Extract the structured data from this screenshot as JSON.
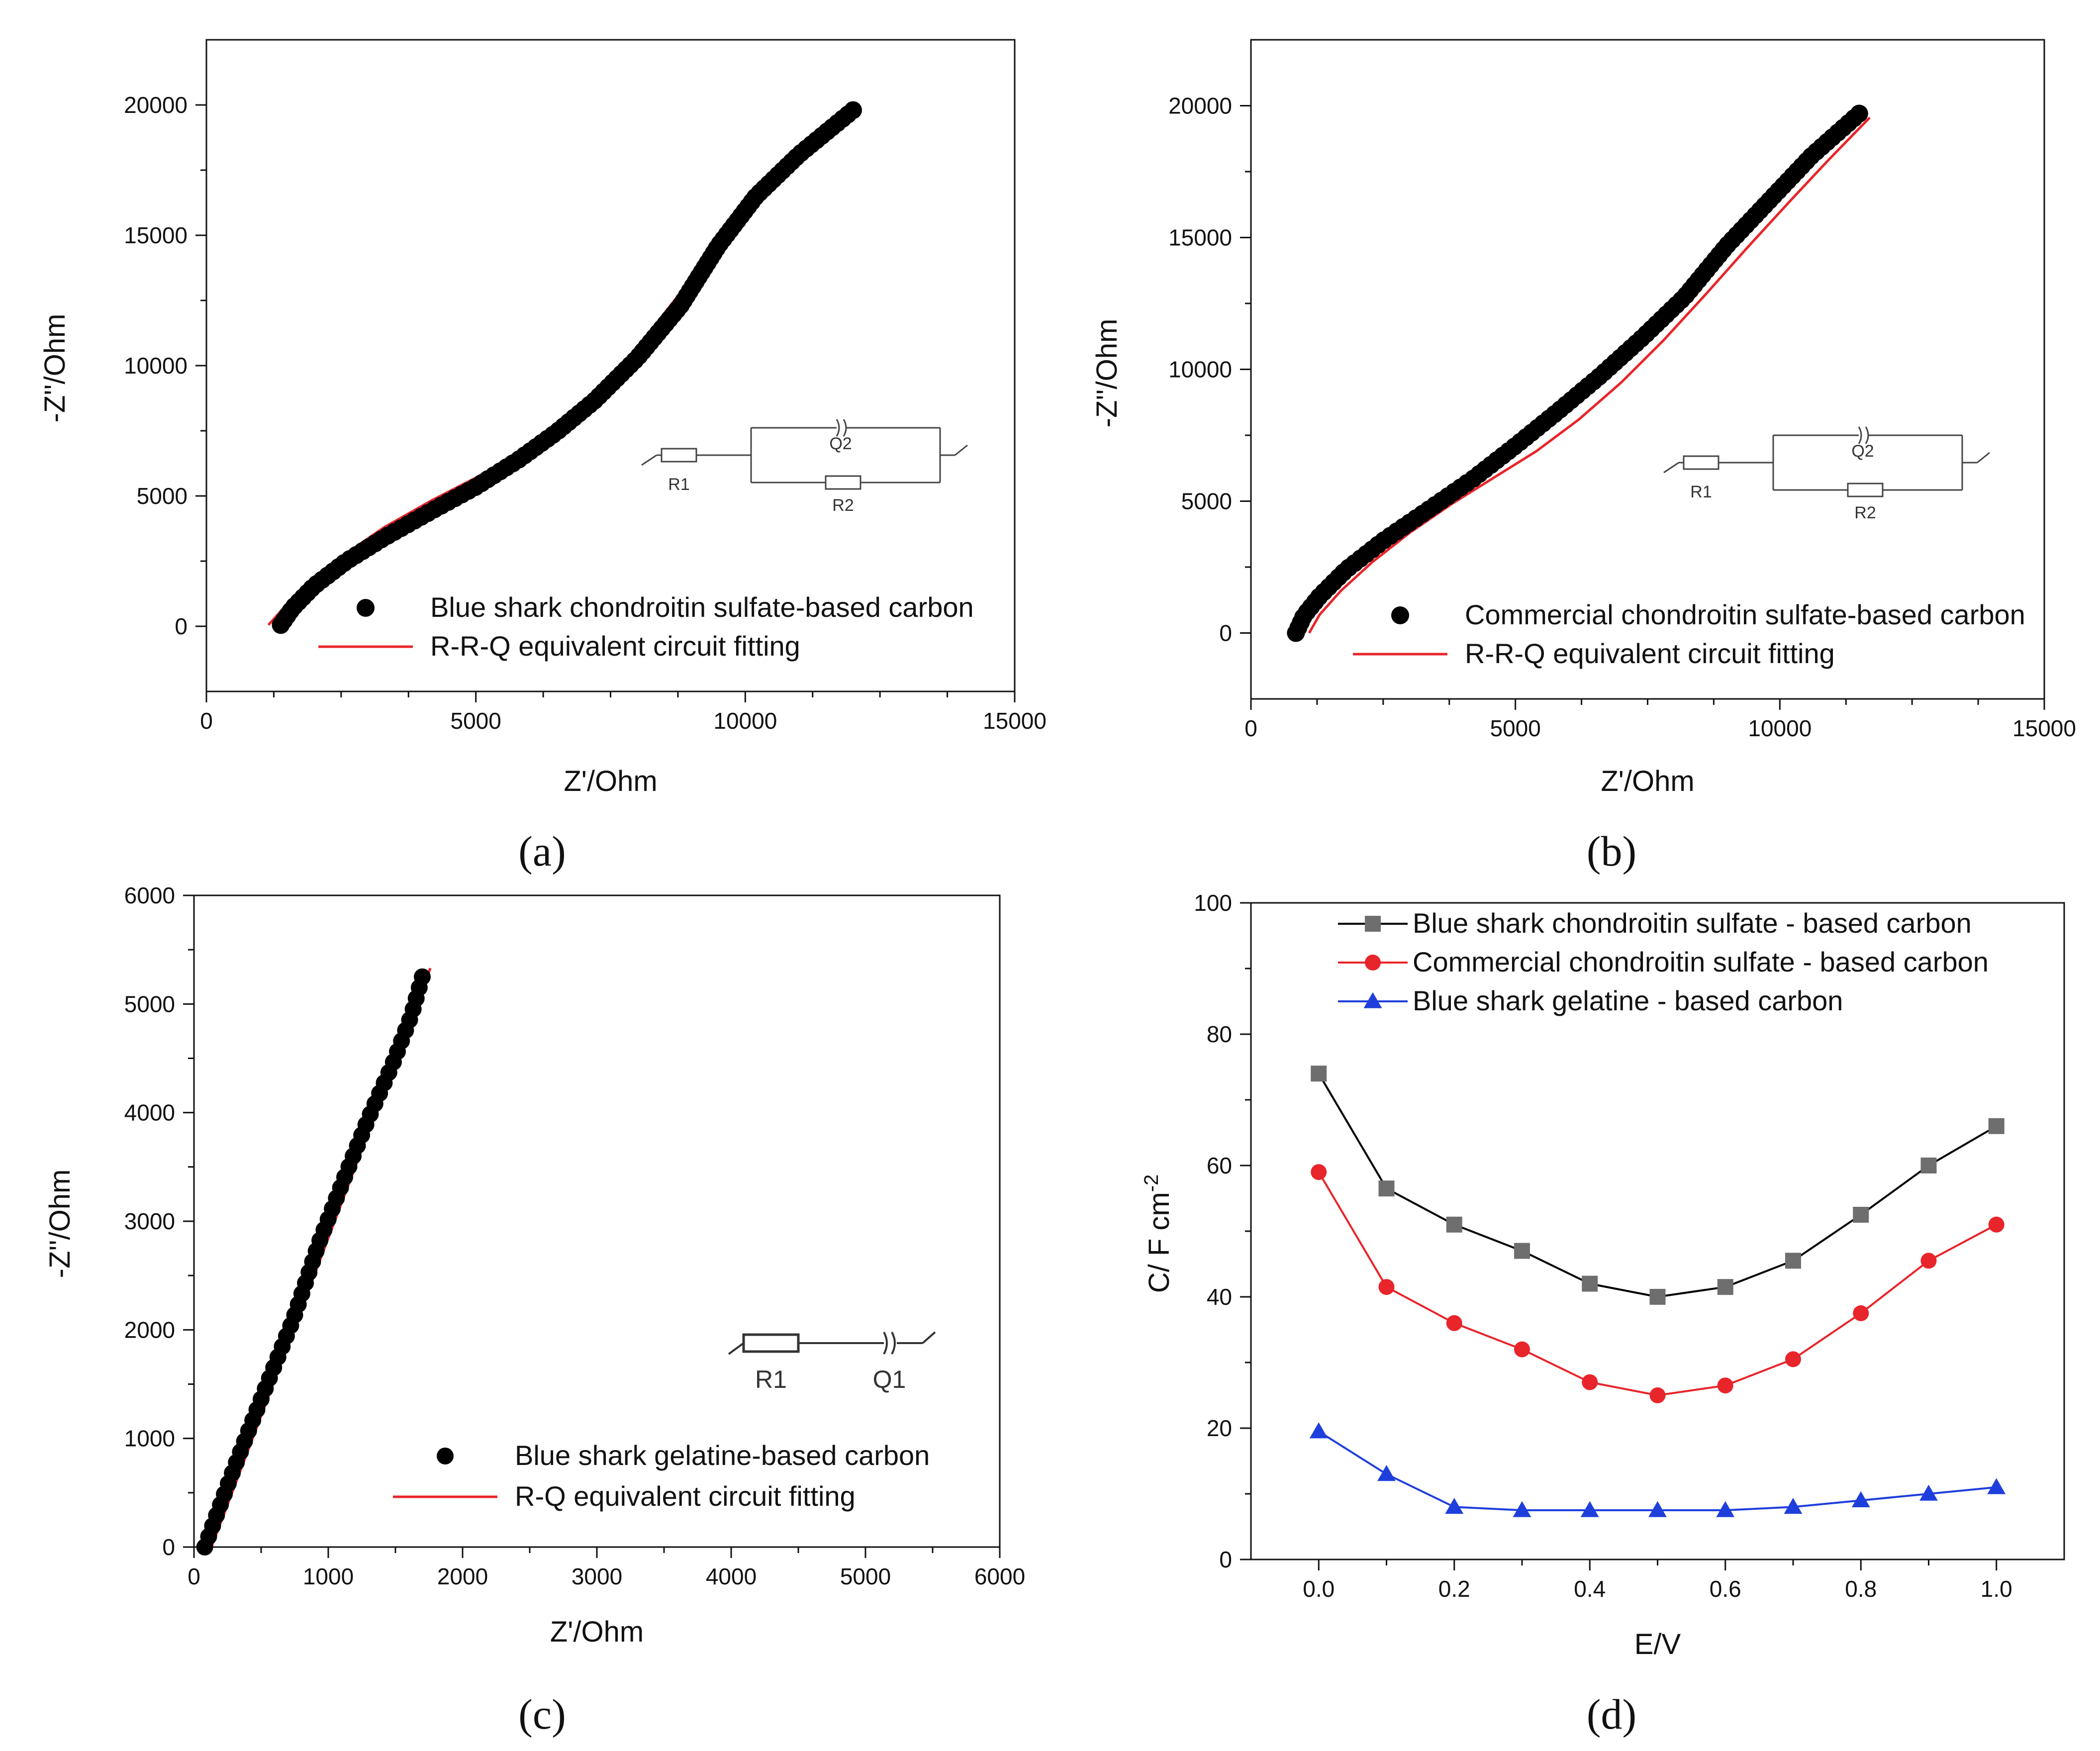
{
  "colors": {
    "black": "#000000",
    "red": "#e8252a",
    "gray": "#6e6e6e",
    "blue": "#1f3fdc",
    "wire": "#444444"
  },
  "chart_data": [
    {
      "id": "a",
      "type": "scatter",
      "panel_label": "(a)",
      "xlabel": "Z'/Ohm",
      "ylabel": "-Z''/Ohm",
      "xlim": [
        0,
        15000
      ],
      "ylim": [
        -2500,
        22500
      ],
      "xticks": [
        0,
        5000,
        10000,
        15000
      ],
      "yticks": [
        0,
        5000,
        10000,
        15000,
        20000
      ],
      "xtick_labels": [
        "0",
        "5000",
        "10000",
        "15000"
      ],
      "ytick_labels": [
        "0",
        "5000",
        "10000",
        "15000",
        "20000"
      ],
      "legend_position": "bottom-center",
      "series": [
        {
          "name": "Blue shark chondroitin sulfate-based carbon",
          "kind": "marker",
          "marker": "circle",
          "color": "#000000",
          "curve": [
            [
              1380,
              50
            ],
            [
              1600,
              700
            ],
            [
              2000,
              1550
            ],
            [
              2600,
              2500
            ],
            [
              3300,
              3400
            ],
            [
              4200,
              4450
            ],
            [
              5000,
              5350
            ],
            [
              5800,
              6400
            ],
            [
              6500,
              7450
            ],
            [
              7200,
              8650
            ],
            [
              8000,
              10300
            ],
            [
              8800,
              12300
            ],
            [
              9500,
              14600
            ],
            [
              10200,
              16500
            ],
            [
              11000,
              18100
            ],
            [
              12000,
              19800
            ]
          ],
          "points": 120
        },
        {
          "name": "R-R-Q equivalent circuit fitting",
          "kind": "line",
          "color": "#e8252a",
          "curve": [
            [
              1150,
              50
            ],
            [
              1500,
              850
            ],
            [
              2000,
              1800
            ],
            [
              2600,
              2800
            ],
            [
              3300,
              3800
            ],
            [
              4200,
              4850
            ],
            [
              5000,
              5700
            ],
            [
              5800,
              6650
            ],
            [
              6500,
              7650
            ],
            [
              7200,
              8900
            ],
            [
              8000,
              10700
            ],
            [
              8800,
              12800
            ],
            [
              9500,
              15000
            ],
            [
              10300,
              17000
            ],
            [
              11000,
              18400
            ],
            [
              11750,
              19650
            ]
          ]
        }
      ],
      "circuit": {
        "labels": [
          "R1",
          "Q2",
          "R2"
        ]
      }
    },
    {
      "id": "b",
      "type": "scatter",
      "panel_label": "(b)",
      "xlabel": "Z'/Ohm",
      "ylabel": "-Z''/Ohm",
      "xlim": [
        0,
        15000
      ],
      "ylim": [
        -2500,
        22500
      ],
      "xticks": [
        0,
        5000,
        10000,
        15000
      ],
      "yticks": [
        0,
        5000,
        10000,
        15000,
        20000
      ],
      "xtick_labels": [
        "0",
        "5000",
        "10000",
        "15000"
      ],
      "ytick_labels": [
        "0",
        "5000",
        "10000",
        "15000",
        "20000"
      ],
      "legend_position": "bottom-center",
      "series": [
        {
          "name": "Commercial chondroitin sulfate-based carbon",
          "kind": "marker",
          "marker": "circle",
          "color": "#000000",
          "curve": [
            [
              850,
              0
            ],
            [
              1000,
              650
            ],
            [
              1300,
              1400
            ],
            [
              1800,
              2400
            ],
            [
              2500,
              3500
            ],
            [
              3300,
              4600
            ],
            [
              4200,
              5850
            ],
            [
              5000,
              7100
            ],
            [
              5800,
              8400
            ],
            [
              6600,
              9750
            ],
            [
              7400,
              11200
            ],
            [
              8200,
              12750
            ],
            [
              9000,
              14700
            ],
            [
              9800,
              16400
            ],
            [
              10600,
              18100
            ],
            [
              11500,
              19700
            ]
          ],
          "points": 110
        },
        {
          "name": "R-R-Q equivalent circuit fitting",
          "kind": "line",
          "color": "#e8252a",
          "curve": [
            [
              1100,
              0
            ],
            [
              1300,
              700
            ],
            [
              1700,
              1600
            ],
            [
              2300,
              2700
            ],
            [
              3000,
              3800
            ],
            [
              3800,
              4900
            ],
            [
              4600,
              5900
            ],
            [
              5400,
              6900
            ],
            [
              6200,
              8100
            ],
            [
              7000,
              9500
            ],
            [
              7800,
              11100
            ],
            [
              8600,
              12850
            ],
            [
              9400,
              14650
            ],
            [
              10200,
              16400
            ],
            [
              10900,
              17900
            ],
            [
              11700,
              19550
            ]
          ]
        }
      ],
      "circuit": {
        "labels": [
          "R1",
          "Q2",
          "R2"
        ]
      }
    },
    {
      "id": "c",
      "type": "scatter",
      "panel_label": "(c)",
      "xlabel": "Z'/Ohm",
      "ylabel": "-Z''/Ohm",
      "xlim": [
        0,
        6000
      ],
      "ylim": [
        0,
        6000
      ],
      "xticks": [
        0,
        1000,
        2000,
        3000,
        4000,
        5000,
        6000
      ],
      "yticks": [
        0,
        1000,
        2000,
        3000,
        4000,
        5000,
        6000
      ],
      "xtick_labels": [
        "0",
        "1000",
        "2000",
        "3000",
        "4000",
        "5000",
        "6000"
      ],
      "ytick_labels": [
        "0",
        "1000",
        "2000",
        "3000",
        "4000",
        "5000",
        "6000"
      ],
      "legend_position": "bottom-center",
      "series": [
        {
          "name": "Blue shark gelatine-based carbon",
          "kind": "marker",
          "marker": "circle",
          "color": "#000000",
          "curve": [
            [
              80,
              0
            ],
            [
              140,
              200
            ],
            [
              260,
              600
            ],
            [
              400,
              1050
            ],
            [
              560,
              1550
            ],
            [
              740,
              2100
            ],
            [
              930,
              2800
            ],
            [
              1120,
              3400
            ],
            [
              1300,
              3950
            ],
            [
              1480,
              4450
            ],
            [
              1620,
              4900
            ],
            [
              1700,
              5250
            ]
          ],
          "points": 55
        },
        {
          "name": "R-Q equivalent circuit fitting",
          "kind": "line",
          "color": "#e8252a",
          "curve": [
            [
              130,
              0
            ],
            [
              1760,
              5330
            ]
          ]
        }
      ],
      "circuit": {
        "labels": [
          "R1",
          "Q1"
        ]
      }
    },
    {
      "id": "d",
      "type": "line",
      "panel_label": "(d)",
      "xlabel": "E/V",
      "ylabel": "C/ F cm",
      "ylabel_superscript": "-2",
      "xlim": [
        -0.1,
        1.1
      ],
      "ylim": [
        0,
        100
      ],
      "xticks": [
        0.0,
        0.2,
        0.4,
        0.6,
        0.8,
        1.0
      ],
      "yticks": [
        0,
        20,
        40,
        60,
        80,
        100
      ],
      "xtick_labels": [
        "0.0",
        "0.2",
        "0.4",
        "0.6",
        "0.8",
        "1.0"
      ],
      "ytick_labels": [
        "0",
        "20",
        "40",
        "60",
        "80",
        "100"
      ],
      "legend_position": "top-center",
      "x": [
        0.0,
        0.1,
        0.2,
        0.3,
        0.4,
        0.5,
        0.6,
        0.7,
        0.8,
        0.9,
        1.0
      ],
      "series": [
        {
          "name": "Blue shark chondroitin sulfate - based carbon",
          "marker": "square",
          "line_color": "#000000",
          "marker_color": "#6e6e6e",
          "values": [
            74,
            56.5,
            51,
            47,
            42,
            40,
            41.5,
            45.5,
            52.5,
            60,
            66
          ]
        },
        {
          "name": "Commercial chondroitin sulfate - based carbon",
          "marker": "circle",
          "line_color": "#e8252a",
          "marker_color": "#e8252a",
          "values": [
            59,
            41.5,
            36,
            32,
            27,
            25,
            26.5,
            30.5,
            37.5,
            45.5,
            51
          ]
        },
        {
          "name": "Blue shark gelatine - based carbon",
          "marker": "triangle",
          "line_color": "#1f3fdc",
          "marker_color": "#1f3fdc",
          "values": [
            19.5,
            13,
            8,
            7.5,
            7.5,
            7.5,
            7.5,
            8,
            9,
            10,
            11
          ]
        }
      ]
    }
  ]
}
